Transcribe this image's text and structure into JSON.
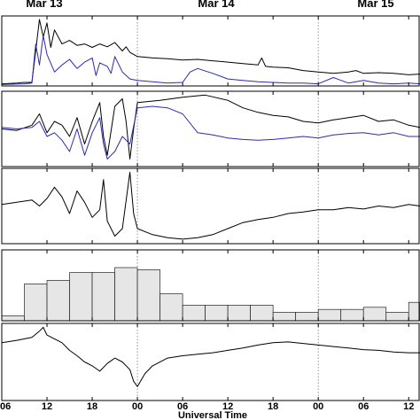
{
  "chart_data": {
    "type": "line",
    "day_labels": [
      "Mar 13",
      "Mar 14",
      "Mar 15"
    ],
    "xlabel": "Universal Time",
    "x_tick_labels": [
      "06",
      "12",
      "18",
      "00",
      "06",
      "12",
      "18",
      "00",
      "06",
      "12"
    ],
    "x_unit": "hours since Mar 13 00 UT",
    "x_ticks": [
      6,
      12,
      18,
      24,
      30,
      36,
      42,
      48,
      54,
      60
    ],
    "xlim": [
      6,
      61.5
    ],
    "day_boundaries": [
      24,
      48
    ],
    "grid": "vertical dotted lines at day boundaries",
    "colors": {
      "black_series": "#000000",
      "blue_series": "#2b2bb5",
      "bar_fill": "#e6e6e6"
    },
    "panels": [
      {
        "type": "line",
        "ylim": [
          0,
          100
        ],
        "series": [
          {
            "color": "#000000",
            "points": [
              [
                6,
                3
              ],
              [
                8,
                4
              ],
              [
                9,
                5
              ],
              [
                10,
                5
              ],
              [
                10.5,
                50
              ],
              [
                11,
                95
              ],
              [
                11.5,
                70
              ],
              [
                12,
                90
              ],
              [
                12.5,
                55
              ],
              [
                13,
                80
              ],
              [
                14,
                60
              ],
              [
                15,
                65
              ],
              [
                16,
                58
              ],
              [
                17,
                60
              ],
              [
                18,
                55
              ],
              [
                19,
                60
              ],
              [
                20,
                56
              ],
              [
                21,
                62
              ],
              [
                22,
                50
              ],
              [
                22.5,
                56
              ],
              [
                23,
                48
              ],
              [
                24,
                42
              ],
              [
                26,
                40
              ],
              [
                28,
                39
              ],
              [
                30,
                37
              ],
              [
                32,
                38
              ],
              [
                34,
                36
              ],
              [
                36,
                34
              ],
              [
                38,
                32
              ],
              [
                40,
                30
              ],
              [
                40.5,
                40
              ],
              [
                41,
                28
              ],
              [
                42,
                27
              ],
              [
                44,
                26
              ],
              [
                46,
                22
              ],
              [
                48,
                20
              ],
              [
                50,
                18
              ],
              [
                52,
                20
              ],
              [
                53,
                22
              ],
              [
                54,
                18
              ],
              [
                56,
                19
              ],
              [
                58,
                18
              ],
              [
                60,
                16
              ],
              [
                61.5,
                17
              ]
            ]
          },
          {
            "color": "#2b2bb5",
            "points": [
              [
                6,
                2
              ],
              [
                9,
                3
              ],
              [
                10,
                4
              ],
              [
                10.5,
                60
              ],
              [
                11,
                30
              ],
              [
                11.5,
                72
              ],
              [
                12,
                45
              ],
              [
                13,
                20
              ],
              [
                14,
                30
              ],
              [
                15,
                38
              ],
              [
                16,
                25
              ],
              [
                17,
                34
              ],
              [
                18,
                40
              ],
              [
                18.5,
                15
              ],
              [
                19,
                33
              ],
              [
                20,
                28
              ],
              [
                20.5,
                18
              ],
              [
                21,
                42
              ],
              [
                22,
                20
              ],
              [
                23,
                10
              ],
              [
                24,
                8
              ],
              [
                28,
                4
              ],
              [
                30,
                5
              ],
              [
                31,
                20
              ],
              [
                32,
                25
              ],
              [
                34,
                18
              ],
              [
                36,
                10
              ],
              [
                38,
                8
              ],
              [
                40,
                6
              ],
              [
                42,
                5
              ],
              [
                44,
                4
              ],
              [
                46,
                4
              ],
              [
                48,
                3
              ],
              [
                50,
                12
              ],
              [
                52,
                4
              ],
              [
                54,
                8
              ],
              [
                56,
                4
              ],
              [
                58,
                3
              ],
              [
                60,
                4
              ],
              [
                61.5,
                3
              ]
            ]
          }
        ]
      },
      {
        "type": "line",
        "ylim": [
          0,
          100
        ],
        "series": [
          {
            "color": "#000000",
            "points": [
              [
                6,
                50
              ],
              [
                8,
                48
              ],
              [
                10,
                55
              ],
              [
                11,
                70
              ],
              [
                12,
                45
              ],
              [
                13,
                60
              ],
              [
                14,
                55
              ],
              [
                15,
                40
              ],
              [
                16,
                65
              ],
              [
                17,
                30
              ],
              [
                18,
                60
              ],
              [
                19,
                85
              ],
              [
                19.5,
                40
              ],
              [
                20,
                15
              ],
              [
                21,
                80
              ],
              [
                22,
                90
              ],
              [
                22.5,
                60
              ],
              [
                23,
                10
              ],
              [
                23.5,
                50
              ],
              [
                24,
                85
              ],
              [
                27,
                88
              ],
              [
                30,
                92
              ],
              [
                33,
                95
              ],
              [
                36,
                88
              ],
              [
                38,
                78
              ],
              [
                40,
                72
              ],
              [
                42,
                68
              ],
              [
                44,
                66
              ],
              [
                46,
                60
              ],
              [
                48,
                58
              ],
              [
                50,
                62
              ],
              [
                52,
                65
              ],
              [
                54,
                68
              ],
              [
                56,
                60
              ],
              [
                58,
                62
              ],
              [
                60,
                55
              ],
              [
                61.5,
                52
              ]
            ]
          },
          {
            "color": "#2b2bb5",
            "points": [
              [
                6,
                52
              ],
              [
                8,
                50
              ],
              [
                10,
                52
              ],
              [
                11,
                60
              ],
              [
                12,
                40
              ],
              [
                13,
                45
              ],
              [
                14,
                35
              ],
              [
                15,
                20
              ],
              [
                16,
                50
              ],
              [
                17,
                15
              ],
              [
                18,
                45
              ],
              [
                19,
                65
              ],
              [
                19.5,
                30
              ],
              [
                20,
                10
              ],
              [
                21,
                20
              ],
              [
                22,
                40
              ],
              [
                23,
                30
              ],
              [
                24,
                78
              ],
              [
                26,
                80
              ],
              [
                28,
                78
              ],
              [
                30,
                70
              ],
              [
                32,
                45
              ],
              [
                34,
                42
              ],
              [
                36,
                38
              ],
              [
                38,
                36
              ],
              [
                40,
                35
              ],
              [
                42,
                36
              ],
              [
                44,
                38
              ],
              [
                46,
                40
              ],
              [
                48,
                38
              ],
              [
                50,
                42
              ],
              [
                52,
                44
              ],
              [
                54,
                45
              ],
              [
                56,
                42
              ],
              [
                58,
                45
              ],
              [
                60,
                40
              ],
              [
                61.5,
                40
              ]
            ]
          }
        ]
      },
      {
        "type": "line",
        "ylim": [
          0,
          100
        ],
        "series": [
          {
            "color": "#000000",
            "points": [
              [
                6,
                52
              ],
              [
                8,
                55
              ],
              [
                10,
                58
              ],
              [
                11,
                50
              ],
              [
                12,
                60
              ],
              [
                13,
                75
              ],
              [
                14,
                62
              ],
              [
                15,
                40
              ],
              [
                16,
                70
              ],
              [
                17,
                55
              ],
              [
                18,
                35
              ],
              [
                19,
                45
              ],
              [
                19.5,
                85
              ],
              [
                20,
                30
              ],
              [
                21,
                10
              ],
              [
                22,
                20
              ],
              [
                23,
                95
              ],
              [
                23.5,
                40
              ],
              [
                24,
                20
              ],
              [
                26,
                12
              ],
              [
                28,
                8
              ],
              [
                30,
                6
              ],
              [
                32,
                8
              ],
              [
                34,
                12
              ],
              [
                36,
                20
              ],
              [
                38,
                28
              ],
              [
                40,
                32
              ],
              [
                42,
                35
              ],
              [
                44,
                40
              ],
              [
                46,
                42
              ],
              [
                48,
                45
              ],
              [
                50,
                45
              ],
              [
                52,
                48
              ],
              [
                54,
                46
              ],
              [
                56,
                50
              ],
              [
                58,
                48
              ],
              [
                60,
                52
              ],
              [
                61.5,
                50
              ]
            ]
          }
        ]
      },
      {
        "type": "bar",
        "ylim": [
          0,
          100
        ],
        "bin_edges": [
          6,
          9,
          12,
          15,
          18,
          21,
          24,
          27,
          30,
          33,
          36,
          39,
          42,
          45,
          48,
          51,
          54,
          57,
          60,
          61.5
        ],
        "values": [
          7,
          52,
          57,
          68,
          68,
          75,
          72,
          38,
          22,
          22,
          22,
          22,
          12,
          12,
          16,
          16,
          19,
          12,
          26
        ]
      },
      {
        "type": "line",
        "ylim": [
          0,
          100
        ],
        "series": [
          {
            "color": "#000000",
            "points": [
              [
                6,
                75
              ],
              [
                8,
                78
              ],
              [
                10,
                82
              ],
              [
                11,
                90
              ],
              [
                11.5,
                95
              ],
              [
                12,
                85
              ],
              [
                14,
                75
              ],
              [
                15,
                65
              ],
              [
                16,
                58
              ],
              [
                17,
                50
              ],
              [
                18,
                45
              ],
              [
                19,
                38
              ],
              [
                20,
                48
              ],
              [
                21,
                55
              ],
              [
                22,
                50
              ],
              [
                23,
                40
              ],
              [
                23.5,
                25
              ],
              [
                24,
                18
              ],
              [
                25,
                35
              ],
              [
                26,
                45
              ],
              [
                28,
                55
              ],
              [
                30,
                58
              ],
              [
                32,
                60
              ],
              [
                34,
                62
              ],
              [
                36,
                65
              ],
              [
                38,
                68
              ],
              [
                40,
                72
              ],
              [
                42,
                75
              ],
              [
                44,
                76
              ],
              [
                46,
                74
              ],
              [
                48,
                72
              ],
              [
                50,
                70
              ],
              [
                52,
                68
              ],
              [
                54,
                66
              ],
              [
                56,
                65
              ],
              [
                58,
                63
              ],
              [
                60,
                62
              ],
              [
                61.5,
                62
              ]
            ]
          }
        ]
      }
    ]
  }
}
